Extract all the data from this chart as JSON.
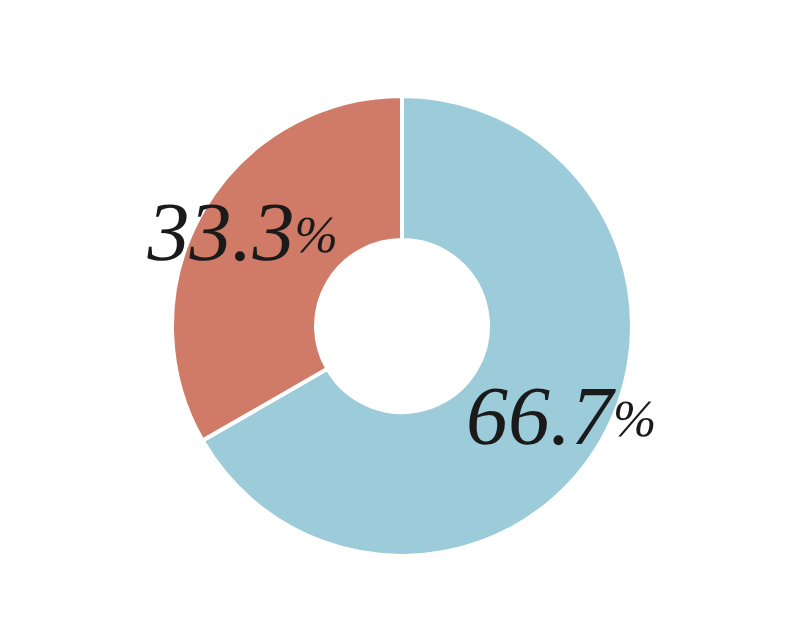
{
  "chart_data": {
    "type": "donut",
    "categories": [
      null,
      null
    ],
    "values": [
      66.7,
      33.3
    ],
    "colors": [
      "#9ccbd9",
      "#d07a68"
    ],
    "value_labels": [
      "66.7%",
      "33.3%"
    ]
  }
}
